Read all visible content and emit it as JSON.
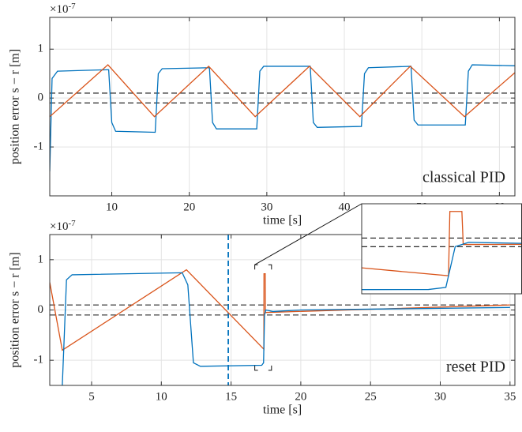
{
  "chart_data": [
    {
      "type": "line",
      "annotation": "classical PID",
      "xlabel": "time [s]",
      "ylabel": "position error s − r [m]",
      "y_multiplier": {
        "base": "×10",
        "exponent": "-7"
      },
      "xlim": [
        2,
        62
      ],
      "xticks": [
        10,
        20,
        30,
        40,
        50,
        60
      ],
      "ylim": [
        -2,
        1.65
      ],
      "yticks": [
        -1,
        0,
        1
      ],
      "grid": true,
      "threshold_lines": [
        0.1,
        -0.1
      ],
      "series": [
        {
          "color": "#0072bd",
          "x": [
            2,
            2.3,
            3,
            9.6,
            10,
            10.5,
            15.6,
            16,
            16.5,
            22.6,
            23,
            23.5,
            28.7,
            29.1,
            29.6,
            35.6,
            36,
            36.5,
            42.2,
            42.6,
            43.1,
            48.6,
            49,
            49.5,
            55.6,
            56,
            56.5,
            62
          ],
          "values": [
            -1.5,
            0.4,
            0.55,
            0.58,
            -0.5,
            -0.68,
            -0.7,
            0.5,
            0.6,
            0.62,
            -0.5,
            -0.63,
            -0.63,
            0.55,
            0.65,
            0.65,
            -0.5,
            -0.6,
            -0.58,
            0.5,
            0.62,
            0.65,
            -0.45,
            -0.55,
            -0.55,
            0.55,
            0.68,
            0.66
          ]
        },
        {
          "color": "#d95319",
          "x": [
            2,
            9.5,
            15.5,
            22.5,
            28.5,
            35.5,
            42,
            48.5,
            55.5,
            62
          ],
          "values": [
            -0.38,
            0.68,
            -0.38,
            0.65,
            -0.38,
            0.65,
            -0.38,
            0.65,
            -0.38,
            0.52
          ]
        }
      ]
    },
    {
      "type": "line",
      "annotation": "reset PID",
      "xlabel": "time [s]",
      "ylabel": "position error s − r [m]",
      "y_multiplier": {
        "base": "×10",
        "exponent": "-7"
      },
      "xlim": [
        2,
        35.35
      ],
      "xticks": [
        5,
        10,
        15,
        20,
        25,
        30,
        35
      ],
      "ylim": [
        -1.5,
        1.5
      ],
      "yticks": [
        -1,
        0,
        1
      ],
      "grid": true,
      "threshold_lines": [
        0.1,
        -0.1
      ],
      "vlines": [
        14.8
      ],
      "series": [
        {
          "color": "#d95319",
          "x": [
            2,
            2.9,
            11.8,
            17.35,
            17.36,
            17.45,
            17.46,
            35
          ],
          "values": [
            0.55,
            -0.8,
            0.8,
            -0.78,
            0.72,
            0.72,
            -0.05,
            0.1
          ]
        },
        {
          "color": "#0072bd",
          "x": [
            2.9,
            3.2,
            3.6,
            11.5,
            11.9,
            12.3,
            12.8,
            17.2,
            17.33,
            17.4,
            17.5,
            18,
            20,
            35
          ],
          "values": [
            -1.5,
            0.6,
            0.7,
            0.74,
            0.5,
            -1.05,
            -1.12,
            -1.1,
            -1.05,
            -0.1,
            0.0,
            -0.03,
            0.0,
            0.05
          ]
        }
      ],
      "inset": {
        "xlim": [
          16.7,
          17.9
        ],
        "ylim": [
          -1.2,
          0.9
        ]
      }
    }
  ]
}
